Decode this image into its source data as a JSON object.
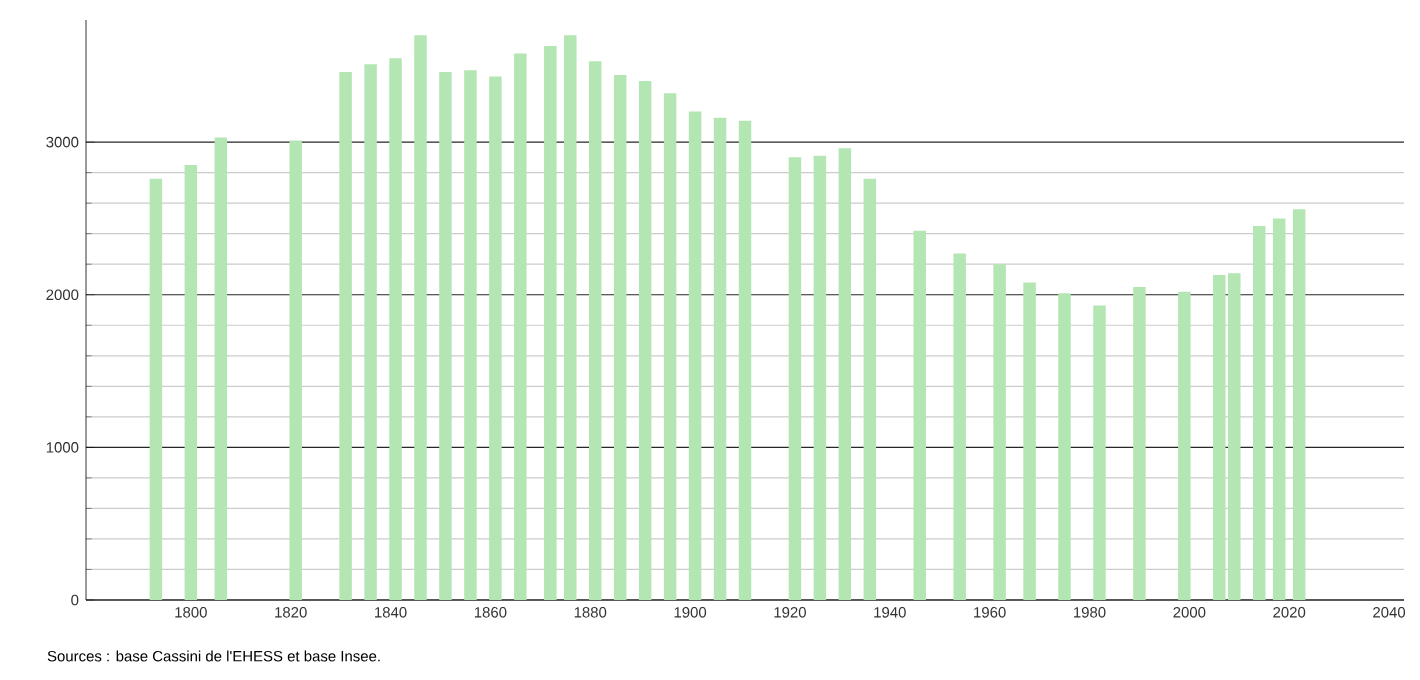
{
  "chart_data": {
    "type": "bar",
    "color": "#b3e6b3",
    "x": [
      1793,
      1800,
      1806,
      1821,
      1831,
      1836,
      1841,
      1846,
      1851,
      1856,
      1861,
      1866,
      1872,
      1876,
      1881,
      1886,
      1891,
      1896,
      1901,
      1906,
      1911,
      1921,
      1926,
      1931,
      1936,
      1946,
      1954,
      1962,
      1968,
      1975,
      1982,
      1990,
      1999,
      2006,
      2009,
      2014,
      2018,
      2022
    ],
    "values": [
      2760,
      2850,
      3030,
      3010,
      3460,
      3510,
      3550,
      3700,
      3460,
      3470,
      3430,
      3580,
      3630,
      3700,
      3530,
      3440,
      3400,
      3320,
      3200,
      3160,
      3140,
      2900,
      2910,
      2960,
      2760,
      2420,
      2270,
      2200,
      2080,
      2010,
      1930,
      2050,
      2020,
      2130,
      2140,
      2450,
      2500,
      2560
    ],
    "xlim": [
      1779,
      2043
    ],
    "xticks": [
      1800,
      1820,
      1840,
      1860,
      1880,
      1900,
      1920,
      1940,
      1960,
      1980,
      2000,
      2020,
      2040
    ],
    "ylim": [
      0,
      3800
    ],
    "yticks": [
      0,
      1000,
      2000,
      3000
    ],
    "grid": "y",
    "annotations": [
      "Sources : base Cassini de l'EHESS et base Insee."
    ]
  }
}
